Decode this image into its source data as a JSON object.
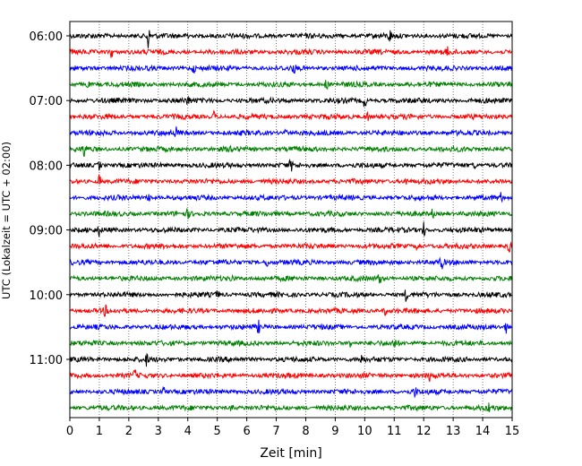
{
  "chart_data": {
    "type": "line",
    "chart_kind": "helicorder",
    "title": "",
    "xlabel": "Zeit  [min]",
    "ylabel": "UTC (Lokalzeit = UTC + 02:00)",
    "xlim": [
      0,
      15
    ],
    "x_ticks": [
      "0",
      "1",
      "2",
      "3",
      "4",
      "5",
      "6",
      "7",
      "8",
      "9",
      "10",
      "11",
      "12",
      "13",
      "14",
      "15"
    ],
    "y_ticks": [
      "06:00",
      "07:00",
      "08:00",
      "09:00",
      "10:00",
      "11:00"
    ],
    "grid": "vertical dotted lines at each minute",
    "line_duration_min": 15,
    "start_time": "06:00",
    "colors": [
      "#000000",
      "#ff0000",
      "#0000ff",
      "#008000"
    ],
    "traces": [
      {
        "start": "06:00",
        "events": [
          {
            "x": 2.65,
            "amp": 1.0
          },
          {
            "x": 4.0,
            "amp": 0.35
          },
          {
            "x": 10.85,
            "amp": 0.45
          }
        ]
      },
      {
        "start": "06:15",
        "events": [
          {
            "x": 1.4,
            "amp": 0.55
          },
          {
            "x": 12.8,
            "amp": 0.3
          }
        ]
      },
      {
        "start": "06:30",
        "events": [
          {
            "x": 4.2,
            "amp": 0.3
          },
          {
            "x": 7.6,
            "amp": 0.3
          }
        ]
      },
      {
        "start": "06:45",
        "events": [
          {
            "x": 0.6,
            "amp": 0.3
          },
          {
            "x": 8.7,
            "amp": 0.35
          }
        ]
      },
      {
        "start": "07:00",
        "events": [
          {
            "x": 4.0,
            "amp": 0.35
          },
          {
            "x": 10.0,
            "amp": 0.5
          }
        ]
      },
      {
        "start": "07:15",
        "events": [
          {
            "x": 4.9,
            "amp": 0.4
          },
          {
            "x": 10.1,
            "amp": 0.35
          }
        ]
      },
      {
        "start": "07:30",
        "events": [
          {
            "x": 3.6,
            "amp": 0.35
          },
          {
            "x": 7.3,
            "amp": 0.3
          }
        ]
      },
      {
        "start": "07:45",
        "events": [
          {
            "x": 0.5,
            "amp": 0.6
          },
          {
            "x": 5.5,
            "amp": 0.3
          }
        ]
      },
      {
        "start": "08:00",
        "events": [
          {
            "x": 1.0,
            "amp": 0.35
          },
          {
            "x": 7.5,
            "amp": 0.4
          },
          {
            "x": 13.7,
            "amp": 0.3
          }
        ]
      },
      {
        "start": "08:15",
        "events": [
          {
            "x": 1.0,
            "amp": 0.5
          },
          {
            "x": 11.4,
            "amp": 0.3
          }
        ]
      },
      {
        "start": "08:30",
        "events": [
          {
            "x": 2.7,
            "amp": 0.45
          },
          {
            "x": 14.6,
            "amp": 0.35
          }
        ]
      },
      {
        "start": "08:45",
        "events": [
          {
            "x": 4.0,
            "amp": 0.3
          },
          {
            "x": 12.3,
            "amp": 0.3
          }
        ]
      },
      {
        "start": "09:00",
        "events": [
          {
            "x": 1.0,
            "amp": 0.35
          },
          {
            "x": 12.0,
            "amp": 0.55
          }
        ]
      },
      {
        "start": "09:15",
        "events": [
          {
            "x": 11.8,
            "amp": 0.45
          },
          {
            "x": 14.9,
            "amp": 0.4
          }
        ]
      },
      {
        "start": "09:30",
        "events": [
          {
            "x": 6.7,
            "amp": 0.35
          },
          {
            "x": 12.6,
            "amp": 0.5
          }
        ]
      },
      {
        "start": "09:45",
        "events": [
          {
            "x": 10.5,
            "amp": 0.45
          },
          {
            "x": 5.5,
            "amp": 0.3
          }
        ]
      },
      {
        "start": "10:00",
        "events": [
          {
            "x": 11.4,
            "amp": 0.4
          },
          {
            "x": 5.0,
            "amp": 0.3
          }
        ]
      },
      {
        "start": "10:15",
        "events": [
          {
            "x": 1.2,
            "amp": 0.35
          },
          {
            "x": 10.7,
            "amp": 0.3
          }
        ]
      },
      {
        "start": "10:30",
        "events": [
          {
            "x": 6.4,
            "amp": 0.4
          },
          {
            "x": 14.8,
            "amp": 0.4
          }
        ]
      },
      {
        "start": "10:45",
        "events": [
          {
            "x": 11.0,
            "amp": 0.35
          },
          {
            "x": 9.5,
            "amp": 0.3
          }
        ]
      },
      {
        "start": "11:00",
        "events": [
          {
            "x": 2.6,
            "amp": 0.4
          },
          {
            "x": 9.9,
            "amp": 0.35
          }
        ]
      },
      {
        "start": "11:15",
        "events": [
          {
            "x": 2.2,
            "amp": 0.35
          },
          {
            "x": 12.2,
            "amp": 0.3
          }
        ]
      },
      {
        "start": "11:30",
        "events": [
          {
            "x": 3.2,
            "amp": 0.4
          },
          {
            "x": 11.7,
            "amp": 0.35
          }
        ]
      },
      {
        "start": "11:45",
        "events": [
          {
            "x": 5.5,
            "amp": 0.3
          },
          {
            "x": 14.2,
            "amp": 0.3
          }
        ]
      }
    ]
  }
}
